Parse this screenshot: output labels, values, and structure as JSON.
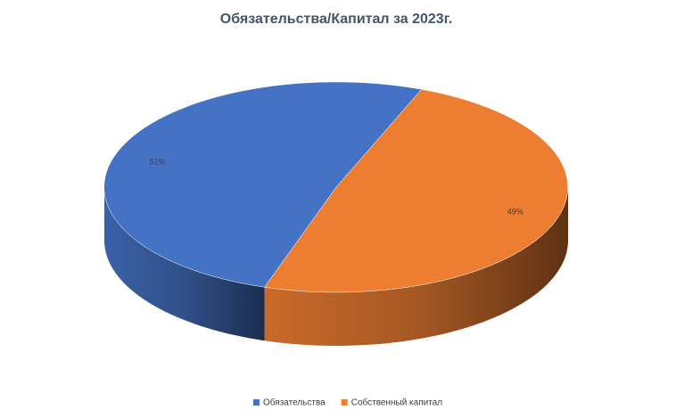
{
  "chart_data": {
    "type": "pie",
    "title": "Обязательства/Капитал за 2023г.",
    "categories": [
      "Обязательства",
      "Собственный капитал"
    ],
    "values": [
      51,
      49
    ],
    "value_labels": [
      "51%",
      "49%"
    ],
    "colors": [
      "#4472c4",
      "#ed7d31"
    ],
    "legend": "bottom"
  }
}
